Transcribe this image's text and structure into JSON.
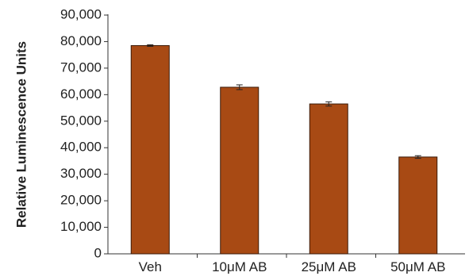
{
  "chart_data": {
    "type": "bar",
    "title": "",
    "xlabel": "",
    "ylabel": "Relative Luminescence Units",
    "categories": [
      "Veh",
      "10μM AB",
      "25μM AB",
      "50μM AB"
    ],
    "values": [
      78500,
      62800,
      56500,
      36500
    ],
    "errors": [
      300,
      900,
      800,
      500
    ],
    "ylim": [
      0,
      90000
    ],
    "yticks": [
      0,
      10000,
      20000,
      30000,
      40000,
      50000,
      60000,
      70000,
      80000,
      90000
    ],
    "ytick_labels": [
      "0",
      "10,000",
      "20,000",
      "30,000",
      "40,000",
      "50,000",
      "60,000",
      "70,000",
      "80,000",
      "90,000"
    ],
    "grid": false,
    "legend": "none",
    "colors": {
      "bar_fill": "#a84a14",
      "bar_stroke": "#3a1a08",
      "axis": "#333333",
      "error_bar": "#222222"
    }
  }
}
